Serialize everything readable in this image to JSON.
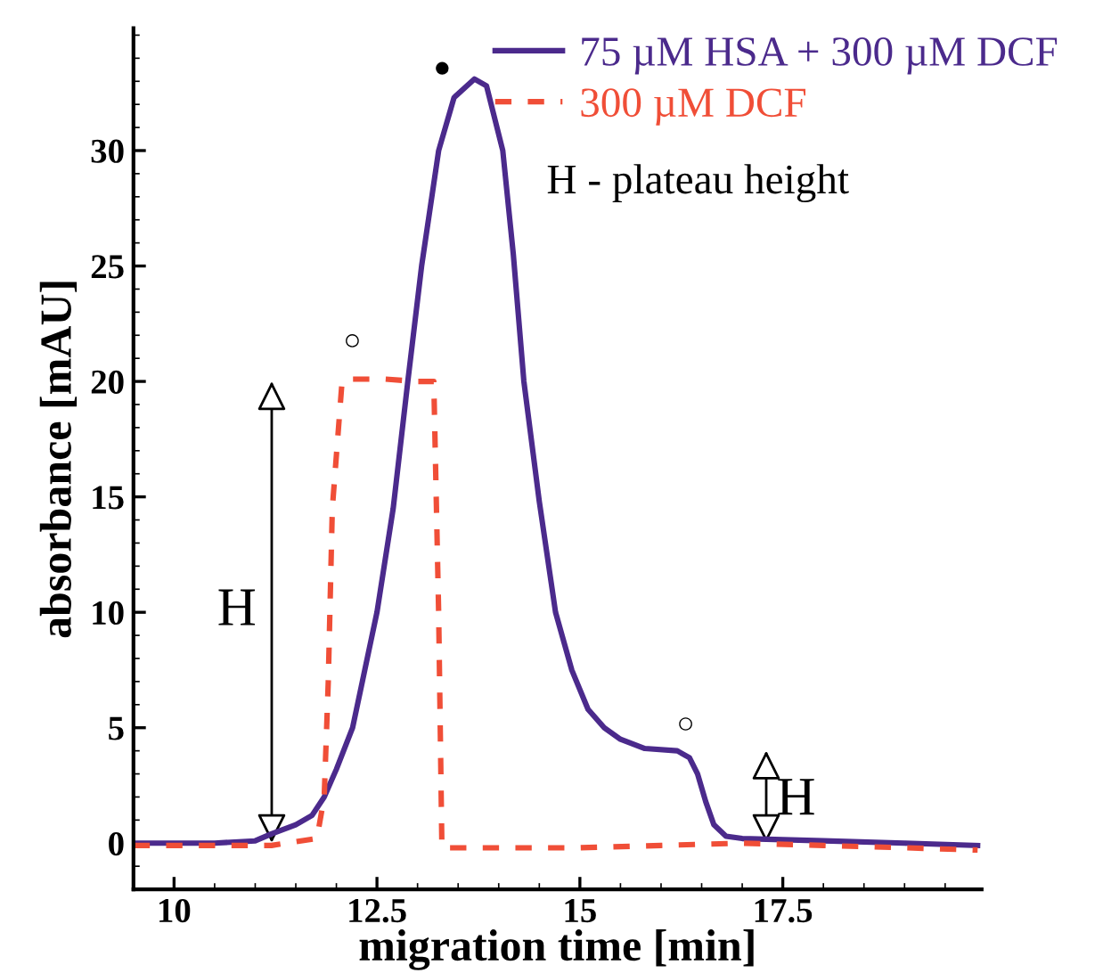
{
  "chart_data": {
    "type": "line",
    "xlabel": "migration time [min]",
    "ylabel": "absorbance [mAU]",
    "xlim": [
      9.5,
      19.95
    ],
    "ylim": [
      -2,
      35.3
    ],
    "xticks": [
      10,
      12.5,
      15,
      17.5
    ],
    "yticks": [
      0,
      5,
      10,
      15,
      20,
      25,
      30
    ],
    "grid": false,
    "legend": "top right",
    "series": [
      {
        "name": "75 µM HSA + 300 µM DCF",
        "color": "#4b2a8c",
        "line_style": "solid",
        "x": [
          9.5,
          10.0,
          10.5,
          11.0,
          11.2,
          11.5,
          11.7,
          11.85,
          12.0,
          12.2,
          12.35,
          12.5,
          12.7,
          12.88,
          13.05,
          13.26,
          13.45,
          13.7,
          13.85,
          14.05,
          14.18,
          14.31,
          14.5,
          14.7,
          14.9,
          15.1,
          15.3,
          15.5,
          15.8,
          16.2,
          16.35,
          16.45,
          16.55,
          16.65,
          16.8,
          17.0,
          17.5,
          18.0,
          19.0,
          19.9
        ],
        "values": [
          0,
          0,
          0,
          0.1,
          0.4,
          0.8,
          1.2,
          2,
          3.2,
          5,
          7.5,
          10,
          14.5,
          20,
          25,
          30,
          32.3,
          33.1,
          32.8,
          30,
          25.5,
          20,
          14.8,
          10,
          7.5,
          5.8,
          5,
          4.5,
          4.1,
          4.0,
          3.7,
          3,
          1.8,
          0.8,
          0.3,
          0.2,
          0.15,
          0.1,
          0,
          -0.1
        ]
      },
      {
        "name": "300 µM DCF",
        "color": "#f04e37",
        "line_style": "dashed",
        "x": [
          9.5,
          10.5,
          11.2,
          11.76,
          11.85,
          11.9,
          11.95,
          12.07,
          12.2,
          12.6,
          13.0,
          13.2,
          13.26,
          13.3,
          14.0,
          15.0,
          16.0,
          17.0,
          18.0,
          19.0,
          19.9
        ],
        "values": [
          -0.1,
          -0.1,
          -0.1,
          0.2,
          2,
          7,
          14.5,
          20,
          20.1,
          20.1,
          20.0,
          20.0,
          10,
          -0.2,
          -0.2,
          -0.2,
          -0.1,
          0,
          -0.1,
          -0.2,
          -0.3
        ]
      }
    ],
    "annotations": [
      "H - plateau height",
      "●",
      "○",
      "○",
      "H",
      "H"
    ]
  }
}
